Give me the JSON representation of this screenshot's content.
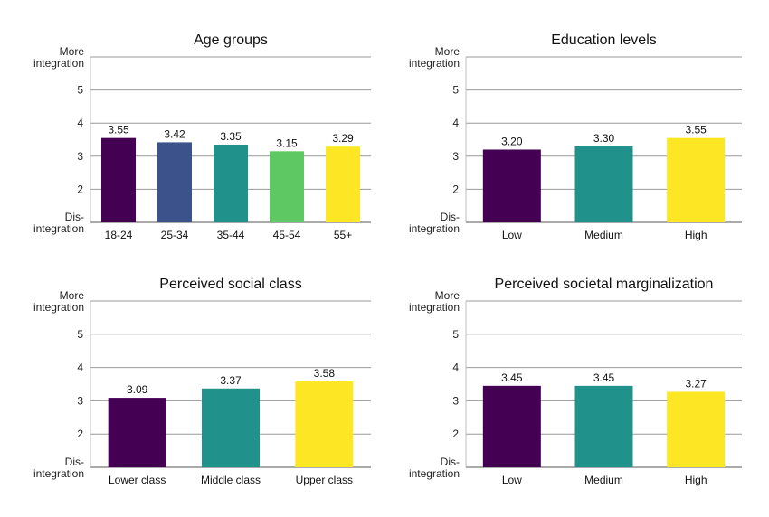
{
  "axis_labels": {
    "top": [
      "More",
      "integration"
    ],
    "bottom": [
      "Dis-",
      "integration"
    ]
  },
  "chart_data": [
    {
      "type": "bar",
      "title": "Age groups",
      "categories": [
        "18-24",
        "25-34",
        "35-44",
        "45-54",
        "55+"
      ],
      "values": [
        3.55,
        3.42,
        3.35,
        3.15,
        3.29
      ],
      "value_labels": [
        "3.55",
        "3.42",
        "3.35",
        "3.15",
        "3.29"
      ],
      "colors": [
        "#440154",
        "#3b528b",
        "#21918c",
        "#5ec962",
        "#fde725"
      ],
      "yticks": [
        2,
        3,
        4,
        5
      ],
      "ylim": [
        1,
        6
      ],
      "grid": true
    },
    {
      "type": "bar",
      "title": "Education levels",
      "categories": [
        "Low",
        "Medium",
        "High"
      ],
      "values": [
        3.2,
        3.3,
        3.55
      ],
      "value_labels": [
        "3.20",
        "3.30",
        "3.55"
      ],
      "colors": [
        "#440154",
        "#21918c",
        "#fde725"
      ],
      "yticks": [
        2,
        3,
        4,
        5
      ],
      "ylim": [
        1,
        6
      ],
      "grid": true
    },
    {
      "type": "bar",
      "title": "Perceived social class",
      "categories": [
        "Lower class",
        "Middle class",
        "Upper class"
      ],
      "values": [
        3.09,
        3.37,
        3.58
      ],
      "value_labels": [
        "3.09",
        "3.37",
        "3.58"
      ],
      "colors": [
        "#440154",
        "#21918c",
        "#fde725"
      ],
      "yticks": [
        2,
        3,
        4,
        5
      ],
      "ylim": [
        1,
        6
      ],
      "grid": true
    },
    {
      "type": "bar",
      "title": "Perceived societal marginalization",
      "categories": [
        "Low",
        "Medium",
        "High"
      ],
      "values": [
        3.45,
        3.45,
        3.27
      ],
      "value_labels": [
        "3.45",
        "3.45",
        "3.27"
      ],
      "colors": [
        "#440154",
        "#21918c",
        "#fde725"
      ],
      "yticks": [
        2,
        3,
        4,
        5
      ],
      "ylim": [
        1,
        6
      ],
      "grid": true
    }
  ]
}
